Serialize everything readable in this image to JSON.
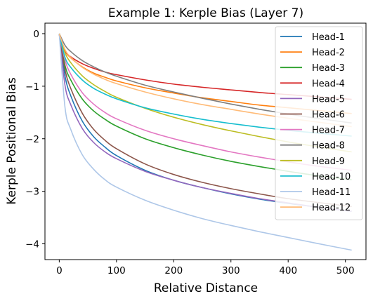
{
  "chart_data": {
    "type": "line",
    "title": "Example 1: Kerple Bias (Layer 7)",
    "xlabel": "Relative Distance",
    "ylabel": "Kerple Positional Bias",
    "xlim": [
      -25,
      536
    ],
    "ylim": [
      -4.3,
      0.2
    ],
    "xticks": [
      0,
      100,
      200,
      300,
      400,
      500
    ],
    "yticks": [
      0,
      -1,
      -2,
      -3,
      -4
    ],
    "xtick_labels": [
      "0",
      "100",
      "200",
      "300",
      "400",
      "500"
    ],
    "ytick_labels": [
      "0",
      "−1",
      "−2",
      "−3",
      "−4"
    ],
    "grid": false,
    "legend_position": "upper-right",
    "x_sample": [
      0,
      10,
      20,
      40,
      60,
      80,
      100,
      150,
      200,
      250,
      300,
      350,
      400,
      450,
      511
    ],
    "series": [
      {
        "name": "Head-1",
        "color": "#1f77b4",
        "values": [
          0,
          -0.8,
          -1.18,
          -1.66,
          -1.96,
          -2.16,
          -2.32,
          -2.6,
          -2.79,
          -2.93,
          -3.05,
          -3.15,
          -3.23,
          -3.3,
          -3.38
        ]
      },
      {
        "name": "Head-2",
        "color": "#ff7f0e",
        "values": [
          0,
          -0.32,
          -0.46,
          -0.63,
          -0.75,
          -0.83,
          -0.9,
          -1.03,
          -1.13,
          -1.22,
          -1.29,
          -1.36,
          -1.41,
          -1.46,
          -1.52
        ]
      },
      {
        "name": "Head-3",
        "color": "#2ca02c",
        "values": [
          0,
          -0.6,
          -0.88,
          -1.24,
          -1.47,
          -1.63,
          -1.76,
          -2.0,
          -2.17,
          -2.31,
          -2.43,
          -2.53,
          -2.62,
          -2.7,
          -2.78
        ]
      },
      {
        "name": "Head-4",
        "color": "#d62728",
        "values": [
          0,
          -0.32,
          -0.44,
          -0.57,
          -0.66,
          -0.73,
          -0.78,
          -0.88,
          -0.96,
          -1.02,
          -1.07,
          -1.12,
          -1.16,
          -1.2,
          -1.25
        ]
      },
      {
        "name": "Head-5",
        "color": "#9467bd",
        "values": [
          0,
          -0.98,
          -1.35,
          -1.8,
          -2.07,
          -2.25,
          -2.38,
          -2.62,
          -2.79,
          -2.93,
          -3.04,
          -3.14,
          -3.22,
          -3.3,
          -3.38
        ]
      },
      {
        "name": "Head-6",
        "color": "#8c564b",
        "values": [
          0,
          -0.68,
          -1.04,
          -1.51,
          -1.82,
          -2.03,
          -2.19,
          -2.48,
          -2.68,
          -2.83,
          -2.95,
          -3.05,
          -3.14,
          -3.21,
          -3.29
        ]
      },
      {
        "name": "Head-7",
        "color": "#e377c2",
        "values": [
          0,
          -0.5,
          -0.77,
          -1.12,
          -1.34,
          -1.5,
          -1.62,
          -1.84,
          -2.0,
          -2.13,
          -2.25,
          -2.35,
          -2.44,
          -2.52,
          -2.6
        ]
      },
      {
        "name": "Head-8",
        "color": "#7f7f7f",
        "values": [
          0,
          -0.22,
          -0.34,
          -0.51,
          -0.63,
          -0.73,
          -0.81,
          -0.98,
          -1.11,
          -1.23,
          -1.34,
          -1.44,
          -1.53,
          -1.61,
          -1.7
        ]
      },
      {
        "name": "Head-9",
        "color": "#bcbd22",
        "values": [
          0,
          -0.36,
          -0.55,
          -0.8,
          -0.97,
          -1.1,
          -1.21,
          -1.42,
          -1.59,
          -1.73,
          -1.85,
          -1.96,
          -2.06,
          -2.15,
          -2.25
        ]
      },
      {
        "name": "Head-10",
        "color": "#17becf",
        "values": [
          0,
          -0.45,
          -0.64,
          -0.88,
          -1.04,
          -1.15,
          -1.24,
          -1.41,
          -1.53,
          -1.63,
          -1.71,
          -1.78,
          -1.84,
          -1.89,
          -1.95
        ]
      },
      {
        "name": "Head-11",
        "color": "#aec7e8",
        "values": [
          0,
          -1.4,
          -1.82,
          -2.3,
          -2.58,
          -2.78,
          -2.92,
          -3.17,
          -3.36,
          -3.52,
          -3.65,
          -3.77,
          -3.88,
          -3.99,
          -4.12
        ]
      },
      {
        "name": "Head-12",
        "color": "#ffbb78",
        "values": [
          0,
          -0.3,
          -0.45,
          -0.64,
          -0.77,
          -0.87,
          -0.95,
          -1.11,
          -1.24,
          -1.35,
          -1.44,
          -1.53,
          -1.61,
          -1.68,
          -1.77
        ]
      }
    ]
  }
}
